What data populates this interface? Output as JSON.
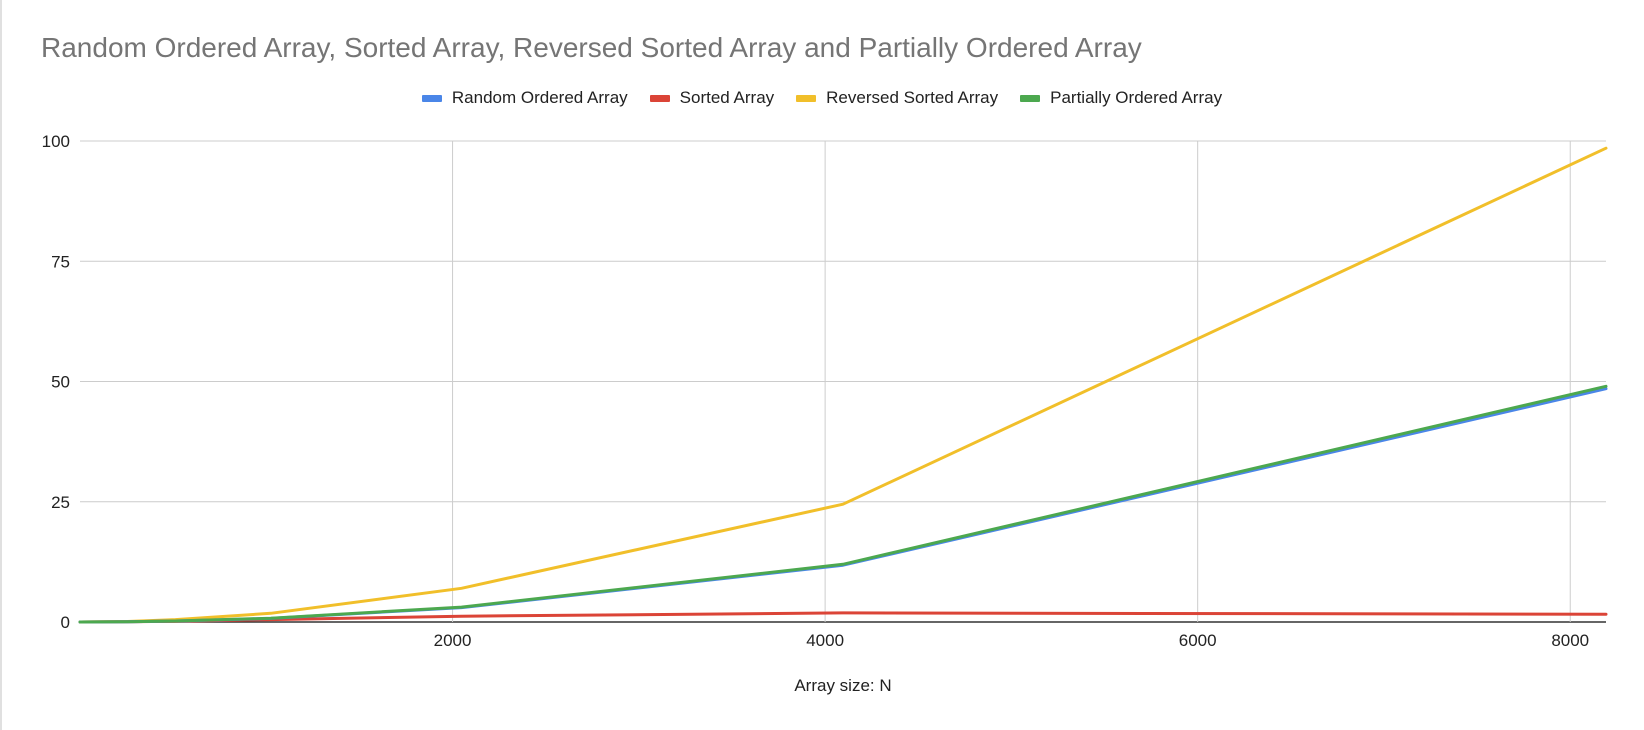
{
  "chart_data": {
    "type": "line",
    "title": "Random Ordered Array, Sorted Array, Reversed Sorted Array and Partially Ordered Array",
    "xlabel": "Array size: N",
    "ylabel": "",
    "xlim": [
      0,
      8192
    ],
    "ylim": [
      0,
      100
    ],
    "x_ticks": [
      2000,
      4000,
      6000,
      8000
    ],
    "y_ticks": [
      0,
      25,
      50,
      75,
      100
    ],
    "grid": true,
    "legend_position": "top",
    "x": [
      0,
      256,
      512,
      1024,
      2048,
      4096,
      8192
    ],
    "series": [
      {
        "name": "Random Ordered Array",
        "color": "#4a86e8",
        "values": [
          0,
          0.05,
          0.2,
          0.75,
          3.0,
          11.8,
          48.5
        ]
      },
      {
        "name": "Sorted Array",
        "color": "#db4437",
        "values": [
          0,
          0.05,
          0.15,
          0.5,
          1.2,
          1.9,
          1.6
        ]
      },
      {
        "name": "Reversed Sorted Array",
        "color": "#f1bf2a",
        "values": [
          0,
          0.1,
          0.5,
          1.8,
          7.0,
          24.5,
          98.5
        ]
      },
      {
        "name": "Partially Ordered Array",
        "color": "#4ca84f",
        "values": [
          0,
          0.05,
          0.2,
          0.8,
          3.1,
          12.0,
          49.0
        ]
      }
    ]
  }
}
